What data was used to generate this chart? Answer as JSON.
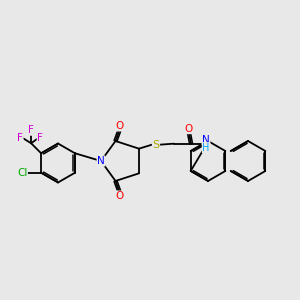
{
  "bg_color": "#e8e8e8",
  "bond_color": "#000000",
  "atom_colors": {
    "F": "#cc00cc",
    "Cl": "#00aa00",
    "N": "#0000ff",
    "O": "#ff0000",
    "S": "#aaaa00",
    "C": "#000000",
    "H": "#00aaff"
  },
  "figsize": [
    3.0,
    3.0
  ],
  "dpi": 100
}
